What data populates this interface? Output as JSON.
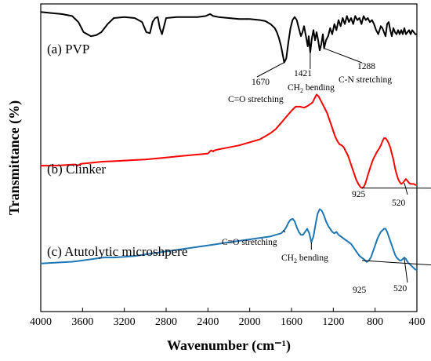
{
  "chart_data": {
    "type": "line",
    "title": "",
    "xlabel": "Wavenumber (cm⁻¹)",
    "ylabel": "Transmittance (%)",
    "xlim": [
      4000,
      400
    ],
    "x_reversed": true,
    "y_ticks_shown": false,
    "x_ticks": [
      "4000",
      "3600",
      "3200",
      "2800",
      "2400",
      "2000",
      "1600",
      "1200",
      "800",
      "400"
    ],
    "grid": false,
    "series": [
      {
        "name": "(a) PVP",
        "color": "#000000",
        "x": [
          4000,
          3900,
          3800,
          3700,
          3640,
          3590,
          3520,
          3470,
          3420,
          3360,
          3300,
          3200,
          3100,
          3030,
          2990,
          2955,
          2930,
          2905,
          2880,
          2860,
          2840,
          2800,
          2700,
          2600,
          2500,
          2420,
          2380,
          2350,
          2300,
          2200,
          2100,
          2000,
          1900,
          1850,
          1800,
          1760,
          1740,
          1720,
          1700,
          1685,
          1670,
          1650,
          1630,
          1610,
          1590,
          1570,
          1550,
          1530,
          1510,
          1495,
          1480,
          1462,
          1445,
          1435,
          1421,
          1405,
          1390,
          1375,
          1360,
          1345,
          1330,
          1315,
          1300,
          1288,
          1270,
          1250,
          1230,
          1210,
          1190,
          1170,
          1150,
          1130,
          1110,
          1090,
          1070,
          1050,
          1030,
          1010,
          990,
          970,
          950,
          930,
          910,
          890,
          870,
          850,
          830,
          810,
          790,
          770,
          745,
          730,
          715,
          700,
          685,
          670,
          655,
          640,
          625,
          610,
          595,
          580,
          565,
          550,
          535,
          520,
          505,
          490,
          475,
          460,
          445,
          430,
          415,
          400
        ],
        "values": [
          91,
          90.5,
          90,
          89,
          86,
          81,
          79,
          79.5,
          81,
          85,
          88,
          88.5,
          88,
          86,
          81,
          80.5,
          86,
          88,
          88.5,
          83,
          80,
          88,
          88.5,
          88.5,
          88.5,
          89,
          90,
          89,
          88.5,
          88,
          87.5,
          87.5,
          87,
          86.5,
          85,
          83,
          81,
          78,
          74,
          70,
          66,
          68,
          76,
          83,
          87,
          88.5,
          87,
          83,
          79,
          81,
          84,
          79,
          74,
          79,
          71,
          78,
          82,
          77,
          81,
          77,
          72,
          75,
          80,
          73,
          77,
          79,
          83,
          80,
          85,
          82,
          87,
          84,
          88,
          85,
          89,
          86,
          88,
          85,
          89,
          87,
          88,
          85,
          89,
          87,
          88,
          86,
          87,
          85,
          82,
          80,
          84,
          83,
          81,
          79,
          85,
          86,
          82,
          79,
          83,
          81,
          80,
          82,
          80,
          82,
          80,
          83,
          80,
          81,
          82,
          80,
          82,
          81,
          80,
          80
        ]
      },
      {
        "name": "(b) Clinker",
        "color": "#ff0000",
        "x": [
          4000,
          3900,
          3800,
          3700,
          3670,
          3650,
          3620,
          3600,
          3500,
          3400,
          3300,
          3200,
          3100,
          3000,
          2900,
          2800,
          2700,
          2600,
          2500,
          2400,
          2380,
          2370,
          2350,
          2340,
          2300,
          2200,
          2100,
          2000,
          1900,
          1800,
          1750,
          1700,
          1650,
          1600,
          1560,
          1520,
          1480,
          1440,
          1400,
          1380,
          1360,
          1340,
          1320,
          1300,
          1280,
          1260,
          1240,
          1220,
          1200,
          1180,
          1160,
          1140,
          1120,
          1100,
          1080,
          1060,
          1040,
          1020,
          1000,
          980,
          960,
          940,
          925,
          910,
          895,
          880,
          860,
          840,
          820,
          800,
          780,
          760,
          745,
          730,
          715,
          700,
          685,
          670,
          655,
          640,
          625,
          610,
          595,
          580,
          565,
          550,
          535,
          520,
          505,
          490,
          475,
          460,
          445,
          430,
          415,
          400
        ],
        "values": [
          33,
          33,
          33.2,
          33.5,
          33.6,
          33,
          33.8,
          34,
          34.5,
          35,
          35.2,
          35.5,
          35.8,
          36,
          36.5,
          37,
          37.5,
          38,
          38.5,
          39,
          40,
          40.5,
          40,
          40.5,
          41,
          42,
          43,
          44.5,
          46,
          49,
          51,
          54,
          57,
          60,
          62,
          62,
          61.5,
          62.5,
          64,
          66,
          68,
          67,
          65,
          63,
          61,
          59,
          56,
          53,
          50,
          47,
          45,
          43.5,
          43,
          42,
          40,
          38,
          35,
          32,
          29,
          26,
          24,
          22.5,
          22,
          22.5,
          24,
          26.5,
          30,
          33,
          36,
          38,
          40,
          41.5,
          43,
          45,
          46.5,
          46.5,
          45.5,
          44,
          42,
          39,
          36,
          32,
          29,
          26.5,
          25,
          24,
          24.5,
          25.5,
          26.5,
          25.5,
          24.5,
          24,
          24,
          24,
          23.5,
          23.5
        ]
      },
      {
        "name": "(c) Atutolytic microshpere",
        "color": "#1f77b4",
        "x": [
          4000,
          3900,
          3800,
          3700,
          3650,
          3600,
          3500,
          3400,
          3300,
          3200,
          3100,
          3000,
          2900,
          2800,
          2700,
          2600,
          2500,
          2400,
          2300,
          2200,
          2100,
          2000,
          1900,
          1800,
          1750,
          1700,
          1670,
          1650,
          1630,
          1610,
          1590,
          1570,
          1550,
          1530,
          1510,
          1490,
          1470,
          1450,
          1430,
          1410,
          1390,
          1370,
          1350,
          1330,
          1310,
          1290,
          1270,
          1250,
          1230,
          1210,
          1190,
          1170,
          1150,
          1130,
          1110,
          1090,
          1070,
          1050,
          1030,
          1010,
          990,
          970,
          950,
          930,
          910,
          895,
          880,
          860,
          840,
          820,
          800,
          780,
          760,
          745,
          730,
          715,
          700,
          685,
          670,
          655,
          640,
          625,
          610,
          595,
          580,
          565,
          550,
          535,
          520,
          505,
          490,
          475,
          460,
          445,
          430,
          415,
          400
        ],
        "values": [
          15,
          15.2,
          15.4,
          15.6,
          15.8,
          16,
          16.5,
          17,
          17,
          17.2,
          17.5,
          18,
          18.5,
          19,
          19.5,
          20,
          20.5,
          21,
          21.5,
          22,
          22.5,
          23,
          23.5,
          24,
          24.5,
          25,
          26,
          27,
          28.5,
          29.5,
          29.8,
          29,
          27,
          25.5,
          24.5,
          24.5,
          25.5,
          26.5,
          25,
          22,
          24,
          28,
          31.5,
          33,
          32.5,
          31,
          29,
          27.5,
          26.5,
          25.5,
          25,
          25.5,
          24.5,
          24,
          23.5,
          23,
          22.5,
          22,
          21.5,
          20.5,
          19.5,
          18.5,
          17.5,
          17,
          16.5,
          16,
          15.5,
          16,
          17,
          19,
          21,
          23,
          24.5,
          25.5,
          26,
          26.5,
          26.5,
          25.5,
          24,
          22.5,
          21,
          19.5,
          18,
          17,
          16.5,
          16,
          16,
          16.5,
          17,
          16.5,
          15.5,
          15,
          14.5,
          14,
          13.5,
          13,
          13
        ]
      }
    ],
    "series_labels": [
      "(a) PVP",
      "(b) Clinker",
      "(c) Atutolytic microshpere"
    ],
    "annotations": {
      "a_1670": "1670",
      "a_co": "C=O stretching",
      "a_1421": "1421",
      "a_ch2_pre": "CH",
      "a_ch2_sub": "2",
      "a_ch2_post": " bending",
      "a_1288": "1288",
      "a_cn": "C-N stretching",
      "b_925": "925",
      "b_520": "520",
      "c_co": "C=O stretching",
      "c_ch2_pre": "CH",
      "c_ch2_sub": "2",
      "c_ch2_post": " bending",
      "c_925": "925",
      "c_520": "520"
    }
  }
}
